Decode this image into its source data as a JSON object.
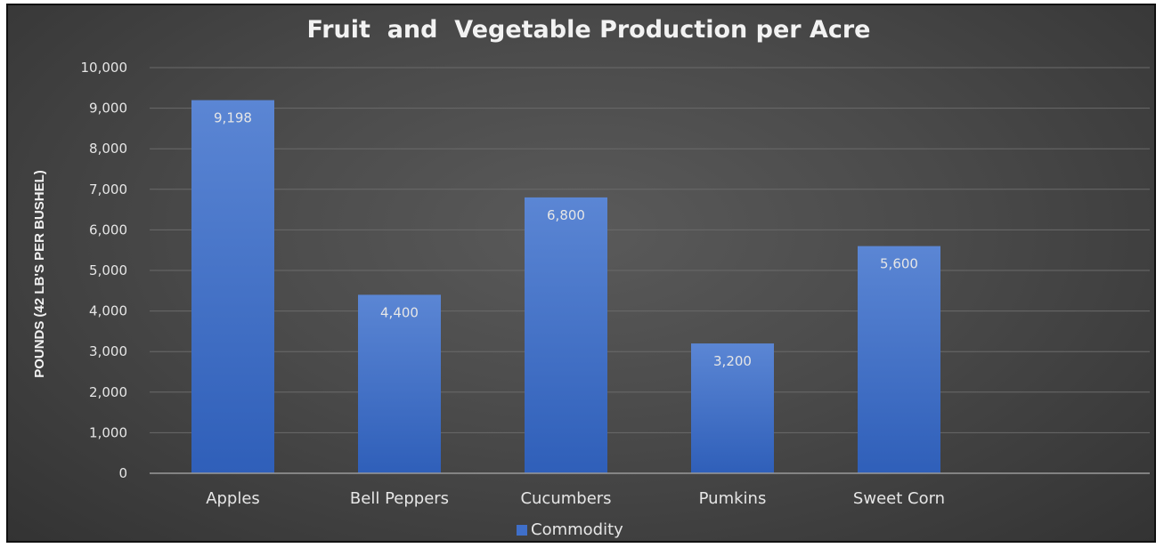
{
  "chart_data": {
    "type": "bar",
    "title": "Fruit  and  Vegetable Production per Acre",
    "xlabel": "",
    "ylabel": "POUNDS (42 LB'S PER BUSHEL)",
    "categories": [
      "Apples",
      "Bell Peppers",
      "Cucumbers",
      "Pumkins",
      "Sweet Corn"
    ],
    "series": [
      {
        "name": "Commodity",
        "values": [
          9198,
          4400,
          6800,
          3200,
          5600
        ],
        "labels": [
          "9,198",
          "4,400",
          "6,800",
          "3,200",
          "5,600"
        ]
      }
    ],
    "ylim": [
      0,
      10000
    ],
    "yticks": [
      0,
      1000,
      2000,
      3000,
      4000,
      5000,
      6000,
      7000,
      8000,
      9000,
      10000
    ],
    "ytick_labels": [
      "0",
      "1,000",
      "2,000",
      "3,000",
      "4,000",
      "5,000",
      "6,000",
      "7,000",
      "8,000",
      "9,000",
      "10,000"
    ],
    "grid": true,
    "legend_position": "bottom",
    "colors": {
      "bar_top": "#5b86d4",
      "bar_bottom": "#2f5fb9",
      "grid": "#6a6a6a",
      "axis": "#9a9a9a",
      "text": "#e6e6e6",
      "title": "#f2f2f2",
      "legend_swatch": "#3f6fc9"
    }
  }
}
